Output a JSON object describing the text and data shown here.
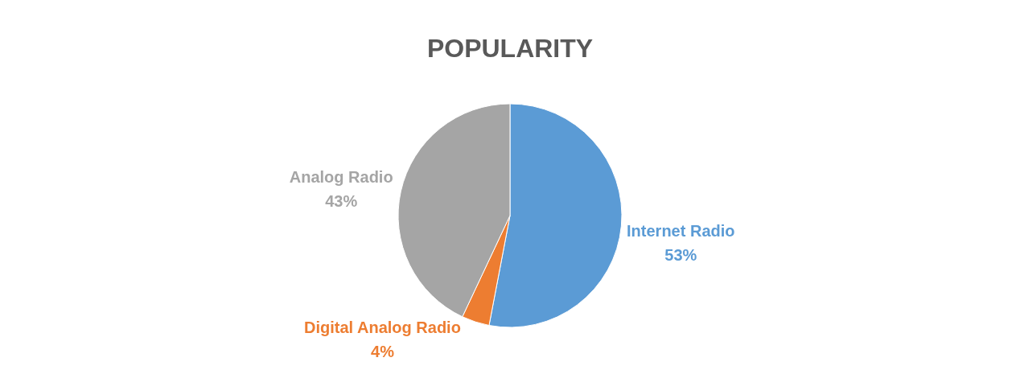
{
  "chart_data": {
    "type": "pie",
    "title": "POPULARITY",
    "categories": [
      "Internet Radio",
      "Digital Analog Radio",
      "Analog Radio"
    ],
    "values": [
      53,
      4,
      43
    ],
    "colors": [
      "#5b9bd5",
      "#ed7d31",
      "#a5a5a5"
    ],
    "value_labels": [
      "53%",
      "4%",
      "43%"
    ],
    "legend": false
  }
}
